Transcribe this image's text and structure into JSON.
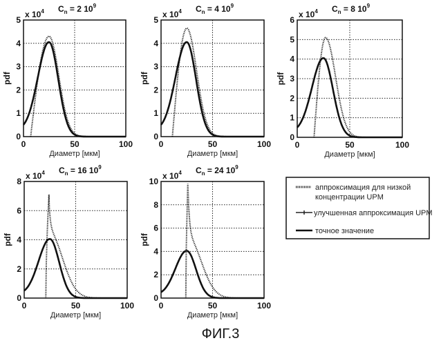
{
  "figure_caption": "ФИГ.3",
  "legend": {
    "items": [
      {
        "label_lines": [
          "аппроксимация для низкой",
          "концентрации UPM"
        ],
        "style": "dotted"
      },
      {
        "label_lines": [
          "улучшенная аппроксимация UPM"
        ],
        "style": "dash-marker"
      },
      {
        "label_lines": [
          "точное значение"
        ],
        "style": "solid"
      }
    ]
  },
  "chart_data": [
    {
      "type": "line",
      "title": "C_n = 2 10^9",
      "title_parts": {
        "c": "C",
        "sub": "n",
        "eq": " = 2 10",
        "sup": "9"
      },
      "multiplier": {
        "base": "x 10",
        "exp": "4"
      },
      "xlabel": "Диаметр [мкм]",
      "ylabel": "pdf",
      "xlim": [
        0,
        100
      ],
      "ylim": [
        0,
        5
      ],
      "xticks": [
        "0",
        "50",
        "100"
      ],
      "yticks": [
        "0",
        "1",
        "2",
        "3",
        "4",
        "5"
      ],
      "grid": true,
      "series": [
        {
          "name": "точное значение",
          "kind": "exact",
          "peak_x": 25,
          "peak_y": 4.05,
          "start_x": 0,
          "start_y": 0.2
        },
        {
          "name": "аппроксимация для низкой концентрации UPM",
          "kind": "lowconc",
          "peak_x": 25,
          "peak_y": 4.3,
          "start_x": 7
        },
        {
          "name": "улучшенная аппроксимация UPM",
          "kind": "improved",
          "peak_x": 25,
          "peak_y": 4.05
        }
      ]
    },
    {
      "type": "line",
      "title": "C_n = 4 10^9",
      "title_parts": {
        "c": "C",
        "sub": "n",
        "eq": " = 4 10",
        "sup": "9"
      },
      "multiplier": {
        "base": "x 10",
        "exp": "4"
      },
      "xlabel": "Диаметр [мкм]",
      "ylabel": "pdf",
      "xlim": [
        0,
        100
      ],
      "ylim": [
        0,
        5
      ],
      "xticks": [
        "0",
        "50",
        "100"
      ],
      "yticks": [
        "0",
        "1",
        "2",
        "3",
        "4",
        "5"
      ],
      "grid": true,
      "series": [
        {
          "name": "точное значение",
          "kind": "exact",
          "peak_x": 25,
          "peak_y": 4.05,
          "start_x": 0,
          "start_y": 0.2
        },
        {
          "name": "аппроксимация для низкой концентрации UPM",
          "kind": "lowconc",
          "peak_x": 25,
          "peak_y": 4.65,
          "start_x": 11
        },
        {
          "name": "улучшенная аппроксимация UPM",
          "kind": "improved",
          "peak_x": 25,
          "peak_y": 4.05
        }
      ]
    },
    {
      "type": "line",
      "title": "C_n = 8 10^9",
      "title_parts": {
        "c": "C",
        "sub": "n",
        "eq": " = 8 10",
        "sup": "9"
      },
      "multiplier": {
        "base": "x 10",
        "exp": "4"
      },
      "xlabel": "Диаметр [мкм]",
      "ylabel": "pdf",
      "xlim": [
        0,
        100
      ],
      "ylim": [
        0,
        6
      ],
      "xticks": [
        "0",
        "50",
        "100"
      ],
      "yticks": [
        "0",
        "1",
        "2",
        "3",
        "4",
        "5",
        "6"
      ],
      "grid": true,
      "series": [
        {
          "name": "точное значение",
          "kind": "exact",
          "peak_x": 25,
          "peak_y": 4.05,
          "start_x": 0,
          "start_y": 0.2
        },
        {
          "name": "аппроксимация для низкой концентрации UPM",
          "kind": "lowconc",
          "peak_x": 27,
          "peak_y": 5.1,
          "start_x": 16
        },
        {
          "name": "улучшенная аппроксимация UPM",
          "kind": "improved",
          "peak_x": 25,
          "peak_y": 4.05
        }
      ]
    },
    {
      "type": "line",
      "title": "C_n = 16 10^9",
      "title_parts": {
        "c": "C",
        "sub": "n",
        "eq": " = 16 10",
        "sup": "9"
      },
      "multiplier": {
        "base": "x 10",
        "exp": "4"
      },
      "xlabel": "Диаметр [мкм]",
      "ylabel": "pdf",
      "xlim": [
        0,
        100
      ],
      "ylim": [
        0,
        8
      ],
      "xticks": [
        "0",
        "50",
        "100"
      ],
      "yticks": [
        "0",
        "2",
        "4",
        "6",
        "8"
      ],
      "grid": true,
      "series": [
        {
          "name": "точное значение",
          "kind": "exact",
          "peak_x": 25,
          "peak_y": 4.05,
          "start_x": 0,
          "start_y": 0.2
        },
        {
          "name": "аппроксимация для низкой концентрации UPM",
          "kind": "lowconc",
          "peak_x": 24,
          "peak_y": 7.1,
          "start_x": 21
        },
        {
          "name": "улучшенная аппроксимация UPM",
          "kind": "improved",
          "peak_x": 25,
          "peak_y": 4.05
        }
      ]
    },
    {
      "type": "line",
      "title": "C_n = 24 10^9",
      "title_parts": {
        "c": "C",
        "sub": "n",
        "eq": " = 24 10",
        "sup": "9"
      },
      "multiplier": {
        "base": "x 10",
        "exp": "4"
      },
      "xlabel": "Диаметр [мкм]",
      "ylabel": "pdf",
      "xlim": [
        0,
        100
      ],
      "ylim": [
        0,
        10
      ],
      "xticks": [
        "0",
        "50",
        "100"
      ],
      "yticks": [
        "0",
        "2",
        "4",
        "6",
        "8",
        "10"
      ],
      "grid": true,
      "series": [
        {
          "name": "точное значение",
          "kind": "exact",
          "peak_x": 25,
          "peak_y": 4.05,
          "start_x": 0,
          "start_y": 0.2
        },
        {
          "name": "аппроксимация для низкой концентрации UPM",
          "kind": "lowconc",
          "peak_x": 26,
          "peak_y": 9.8,
          "start_x": 24
        },
        {
          "name": "улучшенная аппроксимация UPM",
          "kind": "improved",
          "peak_x": 25,
          "peak_y": 4.05
        }
      ]
    }
  ]
}
